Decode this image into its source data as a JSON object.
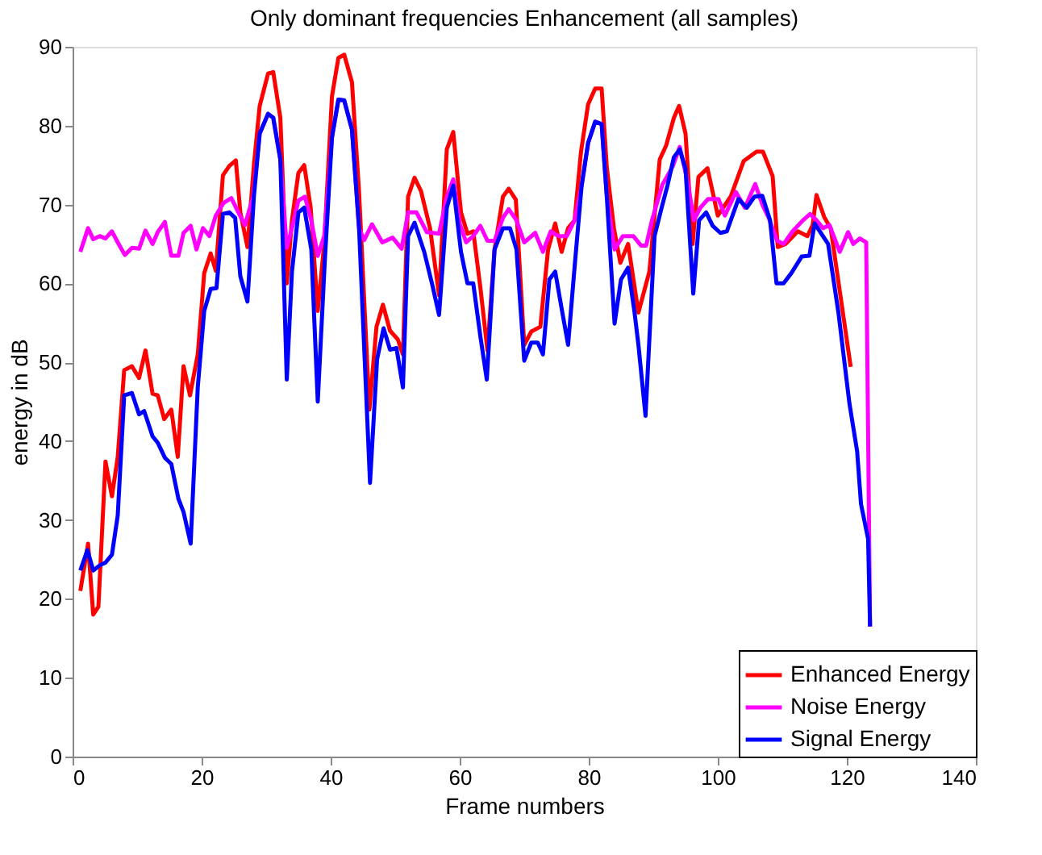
{
  "chart_data": {
    "type": "line",
    "title": "Only dominant frequencies Enhancement (all samples)",
    "xlabel": "Frame numbers",
    "ylabel": "energy in dB",
    "xlim": [
      0,
      140
    ],
    "xticks": [
      0,
      20,
      40,
      60,
      80,
      100,
      120,
      140
    ],
    "ylim": [
      0,
      90
    ],
    "yticks": [
      0,
      10,
      20,
      30,
      40,
      50,
      60,
      70,
      80,
      90
    ],
    "grid": false,
    "legend": "bottom right",
    "marker": "none",
    "line_style": "solid",
    "series": [
      {
        "name": "Enhanced Energy",
        "color": "#ff0000",
        "x": [
          1.2,
          2.4,
          3.2,
          4,
          5.1,
          6.1,
          7,
          8,
          9.2,
          10.3,
          11.3,
          12.4,
          13.2,
          14.2,
          15.3,
          16.3,
          17.2,
          18.2,
          19.4,
          20.4,
          21.4,
          22.2,
          23.3,
          24.3,
          25.3,
          26,
          27.1,
          28.1,
          29,
          30.3,
          31.1,
          32.2,
          33.2,
          34,
          35,
          35.9,
          36.9,
          38,
          39,
          40.2,
          41.2,
          42.1,
          43.3,
          44.4,
          46,
          47.1,
          48.1,
          49.2,
          50.4,
          51.2,
          52,
          53,
          54,
          55.4,
          56.8,
          58,
          59,
          60.2,
          61.2,
          62.1,
          63.2,
          64.3,
          65.4,
          66.7,
          67.6,
          68.7,
          70,
          71.1,
          72.5,
          73.7,
          74.8,
          75.8,
          76.8,
          77.8,
          78.8,
          79.9,
          81,
          82,
          82.8,
          83.9,
          84.9,
          86.1,
          87.7,
          89.4,
          91,
          92,
          93.2,
          94,
          95,
          96.1,
          97,
          98.4,
          100,
          102,
          104,
          106,
          107,
          108.5,
          109.3,
          110.5,
          112.4,
          113.9,
          114.7,
          115.3,
          116.5,
          117.5,
          120.6
        ],
        "values": [
          21,
          27,
          18,
          19,
          37.4,
          33,
          38,
          49,
          49.5,
          48,
          51.5,
          46,
          45.8,
          42.8,
          44,
          38,
          49.5,
          45.8,
          51,
          61.3,
          63.8,
          61.6,
          73.7,
          74.9,
          75.6,
          69,
          64.6,
          75,
          82.5,
          86.6,
          86.8,
          81,
          60,
          68,
          74,
          75,
          69.6,
          56.5,
          65,
          83.7,
          88.6,
          89,
          85.5,
          71.6,
          44,
          54.5,
          57.3,
          54,
          52.9,
          51,
          71,
          73.4,
          71.7,
          67,
          58.5,
          77,
          79.2,
          69,
          66.3,
          66.6,
          59.5,
          51.5,
          64.3,
          71,
          72,
          70.6,
          52.2,
          53.9,
          54.5,
          64.3,
          67.6,
          64,
          67,
          68,
          76.7,
          82.7,
          84.7,
          84.7,
          74.7,
          67,
          62.6,
          65,
          56.3,
          61.5,
          75.7,
          77.5,
          81,
          82.5,
          79,
          65,
          73.5,
          74.6,
          68.6,
          71,
          75.5,
          76.7,
          76.7,
          73.6,
          64.6,
          65,
          66.6,
          66,
          67.4,
          71.2,
          68.4,
          67,
          49.4
        ]
      },
      {
        "name": "Noise Energy",
        "color": "#ff00ff",
        "x": [
          1.2,
          2.4,
          3.2,
          4.2,
          5.1,
          6.1,
          7,
          8.1,
          9.2,
          10.3,
          11.3,
          12.4,
          13.2,
          14.3,
          15.3,
          16.4,
          17.2,
          18.3,
          19.2,
          20.2,
          21.2,
          22.2,
          23.4,
          24.6,
          25.7,
          26.7,
          28,
          29,
          30.3,
          31.1,
          32.2,
          33.2,
          34,
          35,
          36,
          37,
          38,
          39,
          40.2,
          41.2,
          42.1,
          43.3,
          44.4,
          45.2,
          46.4,
          48,
          49.6,
          51,
          52,
          53.3,
          54.9,
          56.8,
          58,
          59,
          60,
          61,
          62.1,
          63.2,
          64.3,
          65.4,
          66.7,
          67.6,
          68.8,
          70,
          71.7,
          72.9,
          74.1,
          75.3,
          76.6,
          77.8,
          78.9,
          79.9,
          81,
          82,
          82.8,
          84,
          85.3,
          86.9,
          88.1,
          88.9,
          89.8,
          91.4,
          93,
          94.1,
          95.3,
          96.3,
          97.3,
          98.5,
          100.1,
          101.1,
          102.8,
          104.2,
          105.8,
          106.9,
          107.9,
          109.2,
          110.2,
          111.6,
          113.2,
          114.3,
          115.3,
          116.3,
          117.3,
          118.9,
          120.2,
          121,
          122,
          123,
          123.6
        ],
        "values": [
          64,
          67,
          65.6,
          66,
          65.7,
          66.6,
          65.2,
          63.6,
          64.5,
          64.4,
          66.7,
          65,
          66.5,
          67.8,
          63.5,
          63.5,
          66.4,
          67.3,
          64.3,
          67,
          66,
          68.6,
          70.2,
          70.8,
          69,
          67.4,
          71,
          79,
          81.5,
          81,
          75.7,
          64.5,
          67,
          70.5,
          71,
          68,
          63.5,
          66,
          78.5,
          83.3,
          83.2,
          79.5,
          67,
          65.5,
          67.5,
          65.2,
          65.8,
          64.4,
          69,
          69,
          66.5,
          66.3,
          71,
          73.2,
          67.6,
          65.2,
          66,
          67.3,
          65.4,
          65.4,
          68.3,
          69.4,
          68,
          65.2,
          66.4,
          64,
          66.6,
          66,
          66,
          68,
          72.4,
          77.8,
          80.5,
          80.2,
          71,
          64.3,
          66,
          66,
          64.8,
          64.8,
          68,
          72.5,
          74.8,
          77.3,
          73,
          68,
          69.6,
          70.7,
          70.7,
          68.6,
          71.6,
          69.6,
          72.6,
          70,
          68.3,
          65.4,
          65,
          66.6,
          68,
          68.8,
          68,
          67,
          67.4,
          64,
          66.5,
          65,
          65.7,
          65.2,
          16.5
        ]
      },
      {
        "name": "Signal Energy",
        "color": "#0000ff",
        "x": [
          1.2,
          2.3,
          3.2,
          4.3,
          5.1,
          6.1,
          7,
          8,
          9.2,
          10.3,
          11.1,
          12.4,
          13.2,
          14.3,
          15.3,
          16.4,
          17.2,
          18.3,
          19.4,
          20.4,
          21.4,
          22.3,
          23.3,
          24.3,
          25.2,
          26,
          27.1,
          28.1,
          29,
          30.3,
          31.1,
          32.2,
          33.2,
          34,
          35,
          35.9,
          37,
          38,
          39.1,
          40.2,
          41.2,
          42.1,
          43.3,
          44.4,
          46.1,
          47.2,
          48.2,
          49.2,
          50.2,
          51.2,
          52,
          53,
          54.5,
          55.7,
          56.8,
          58,
          59,
          60.2,
          61.2,
          62.1,
          63.2,
          64.2,
          65.4,
          66.7,
          67.8,
          68.8,
          70,
          71.1,
          72.1,
          72.9,
          73.9,
          74.8,
          75.8,
          76.8,
          77.8,
          78.9,
          79.9,
          81,
          82,
          82.8,
          84,
          85,
          86.1,
          87.1,
          87.7,
          88.8,
          90.2,
          91.3,
          92.2,
          93.2,
          94.1,
          95,
          96.2,
          97.1,
          98.2,
          99.2,
          100.4,
          101.4,
          103.2,
          104.5,
          105.7,
          106.9,
          108.1,
          109.1,
          110.2,
          111.4,
          113,
          114.2,
          115,
          117.1,
          118.7,
          120.4,
          121.6,
          122.2,
          123.3,
          123.6
        ],
        "values": [
          23.6,
          26.2,
          23.6,
          24.3,
          24.6,
          25.6,
          30.6,
          45.8,
          46.1,
          43.4,
          43.8,
          40.6,
          39.8,
          37.9,
          37.1,
          32.7,
          31,
          27,
          46.8,
          56.5,
          59.3,
          59.4,
          68.8,
          69,
          68.3,
          60.9,
          57.7,
          71,
          79,
          81.5,
          81,
          75.7,
          47.8,
          61.5,
          69,
          69.6,
          64.3,
          45,
          63,
          78.5,
          83.3,
          83.2,
          79.5,
          67,
          34.7,
          50.4,
          54.3,
          51.6,
          51.8,
          46.8,
          66,
          67.7,
          64,
          60,
          56,
          69.6,
          72.4,
          64,
          60,
          60,
          53.3,
          47.8,
          64.3,
          67,
          67,
          64.3,
          50.2,
          52.5,
          52.5,
          51,
          60.5,
          61.5,
          56.8,
          52.2,
          62,
          72.4,
          77.8,
          80.5,
          80.2,
          71,
          54.9,
          60.5,
          62,
          56.3,
          52.2,
          43.2,
          66,
          69.6,
          72.4,
          76,
          77,
          74.5,
          58.7,
          68,
          69,
          67.3,
          66.4,
          66.6,
          70.7,
          69.6,
          71,
          71.1,
          68,
          60,
          60,
          61.3,
          63.4,
          63.5,
          67.6,
          65,
          56.3,
          44.8,
          38.7,
          32,
          27.6,
          16.5
        ]
      }
    ]
  }
}
